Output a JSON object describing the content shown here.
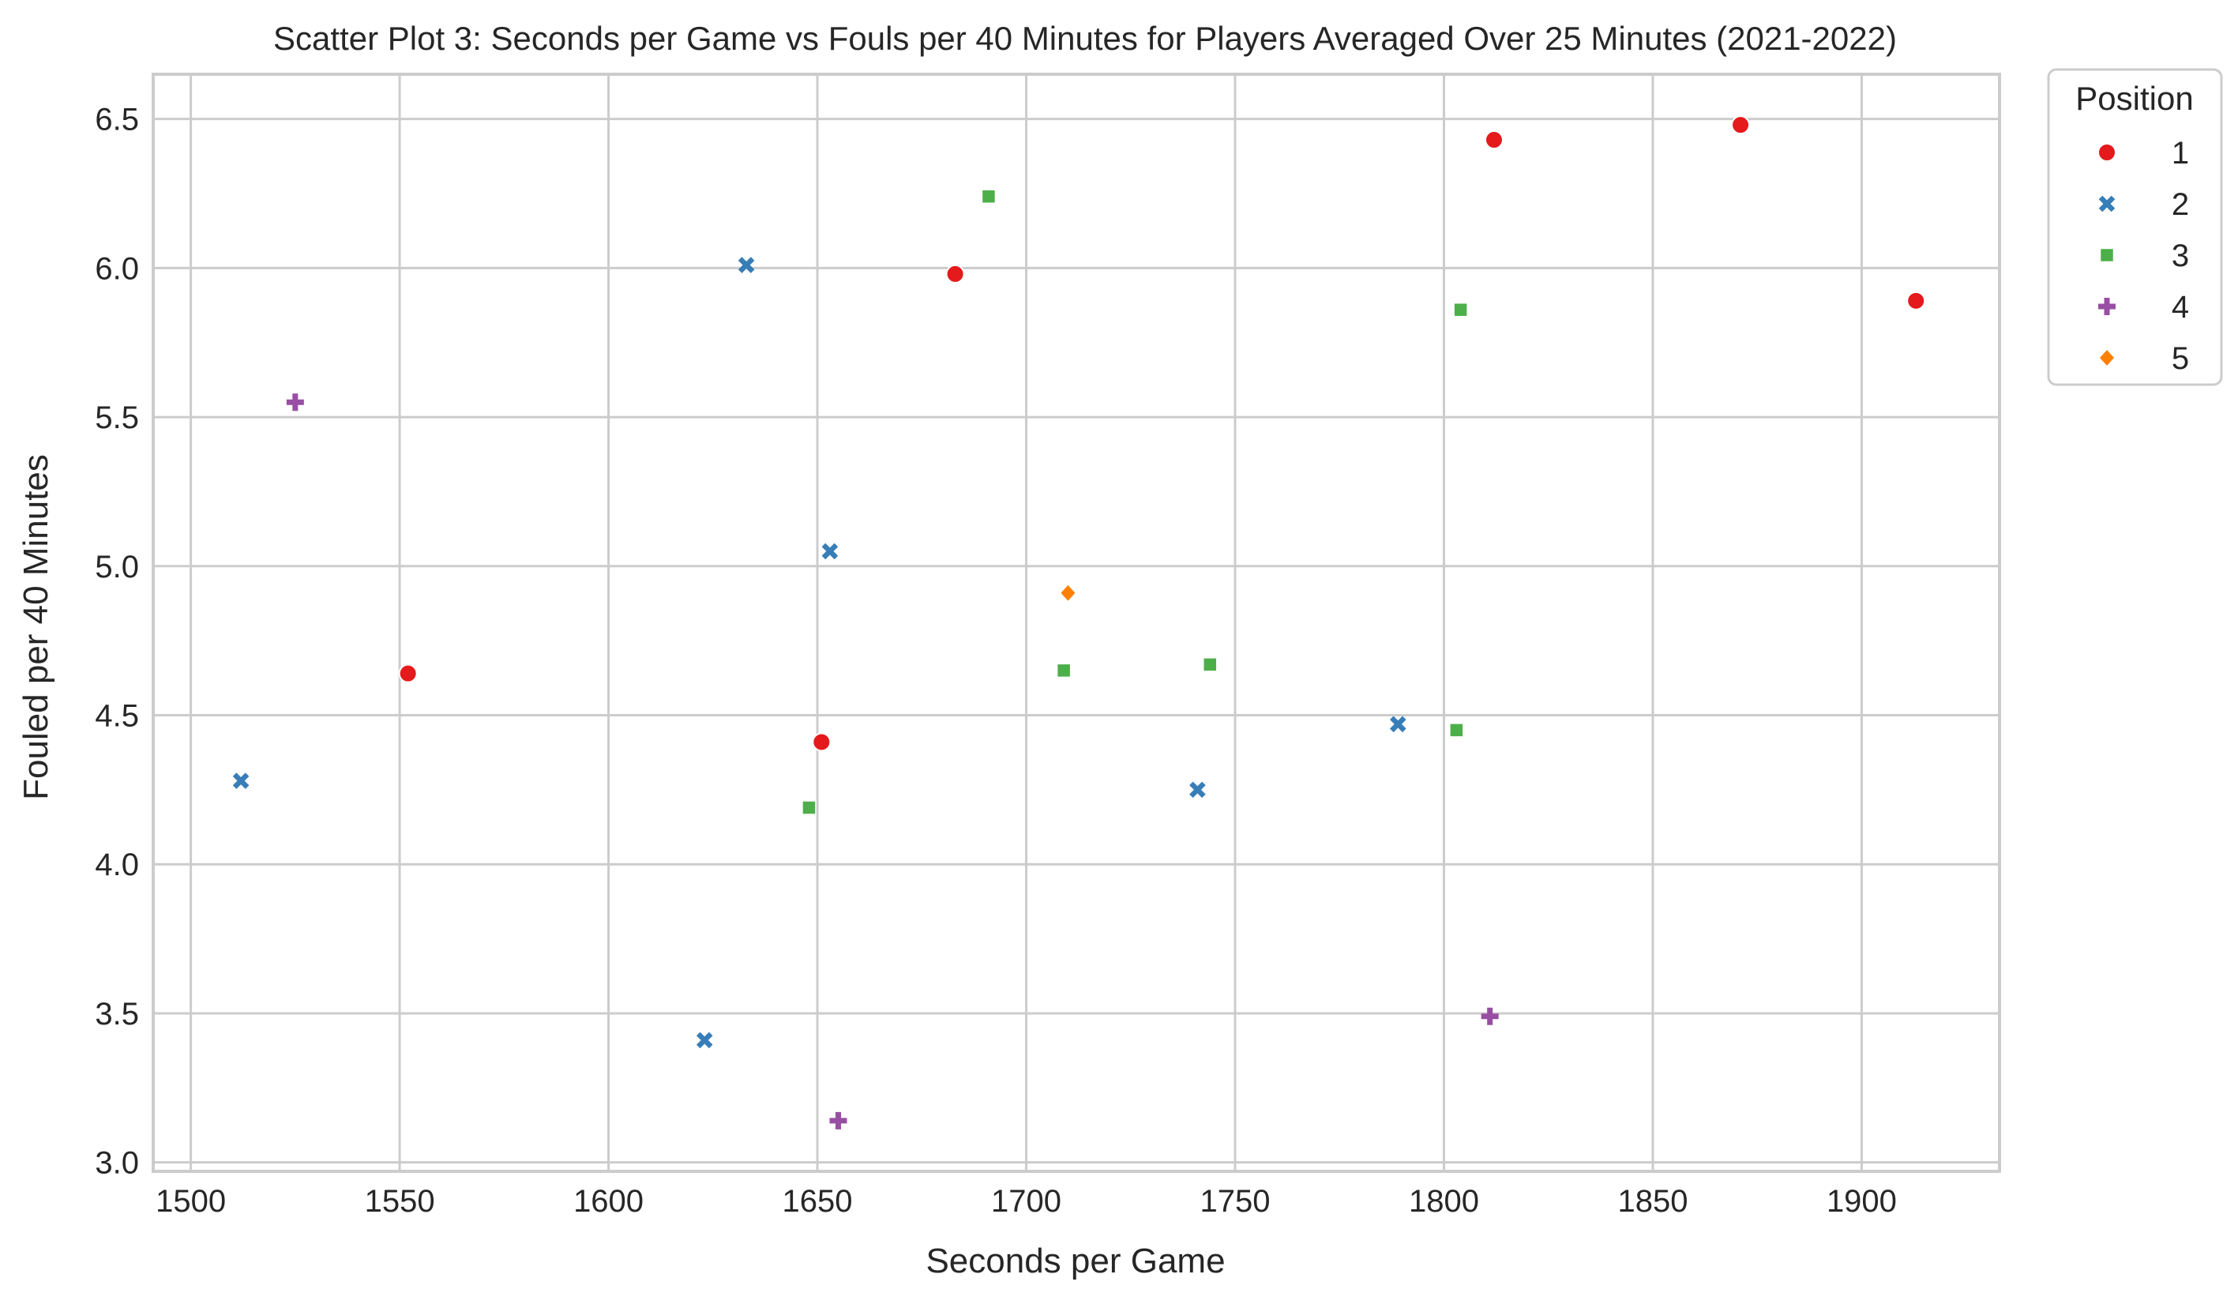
{
  "chart_data": {
    "type": "scatter",
    "title": "Scatter Plot 3: Seconds per Game vs Fouls per 40 Minutes for Players Averaged Over 25 Minutes (2021-2022)",
    "xlabel": "Seconds per Game",
    "ylabel": "Fouled per 40 Minutes",
    "xlim": [
      1491,
      1933
    ],
    "ylim": [
      2.97,
      6.65
    ],
    "xticks": [
      1500,
      1550,
      1600,
      1650,
      1700,
      1750,
      1800,
      1850,
      1900
    ],
    "yticks": [
      3.0,
      3.5,
      4.0,
      4.5,
      5.0,
      5.5,
      6.0,
      6.5
    ],
    "grid": true,
    "legend": {
      "title": "Position",
      "placement": "outside-top-right"
    },
    "series": [
      {
        "name": "1",
        "marker": "circle",
        "color": "#e41a1c",
        "points": [
          [
            1552,
            4.64
          ],
          [
            1651,
            4.41
          ],
          [
            1683,
            5.98
          ],
          [
            1812,
            6.43
          ],
          [
            1871,
            6.48
          ],
          [
            1913,
            5.89
          ]
        ]
      },
      {
        "name": "2",
        "marker": "x",
        "color": "#377eb8",
        "points": [
          [
            1512,
            4.28
          ],
          [
            1623,
            3.41
          ],
          [
            1633,
            6.01
          ],
          [
            1653,
            5.05
          ],
          [
            1741,
            4.25
          ],
          [
            1789,
            4.47
          ]
        ]
      },
      {
        "name": "3",
        "marker": "square",
        "color": "#4daf4a",
        "points": [
          [
            1648,
            4.19
          ],
          [
            1691,
            6.24
          ],
          [
            1709,
            4.65
          ],
          [
            1744,
            4.67
          ],
          [
            1803,
            4.45
          ],
          [
            1804,
            5.86
          ]
        ]
      },
      {
        "name": "4",
        "marker": "plus",
        "color": "#984ea3",
        "points": [
          [
            1525,
            5.55
          ],
          [
            1655,
            3.14
          ],
          [
            1811,
            3.49
          ]
        ]
      },
      {
        "name": "5",
        "marker": "diamond",
        "color": "#ff7f00",
        "points": [
          [
            1710,
            4.91
          ]
        ]
      }
    ]
  }
}
